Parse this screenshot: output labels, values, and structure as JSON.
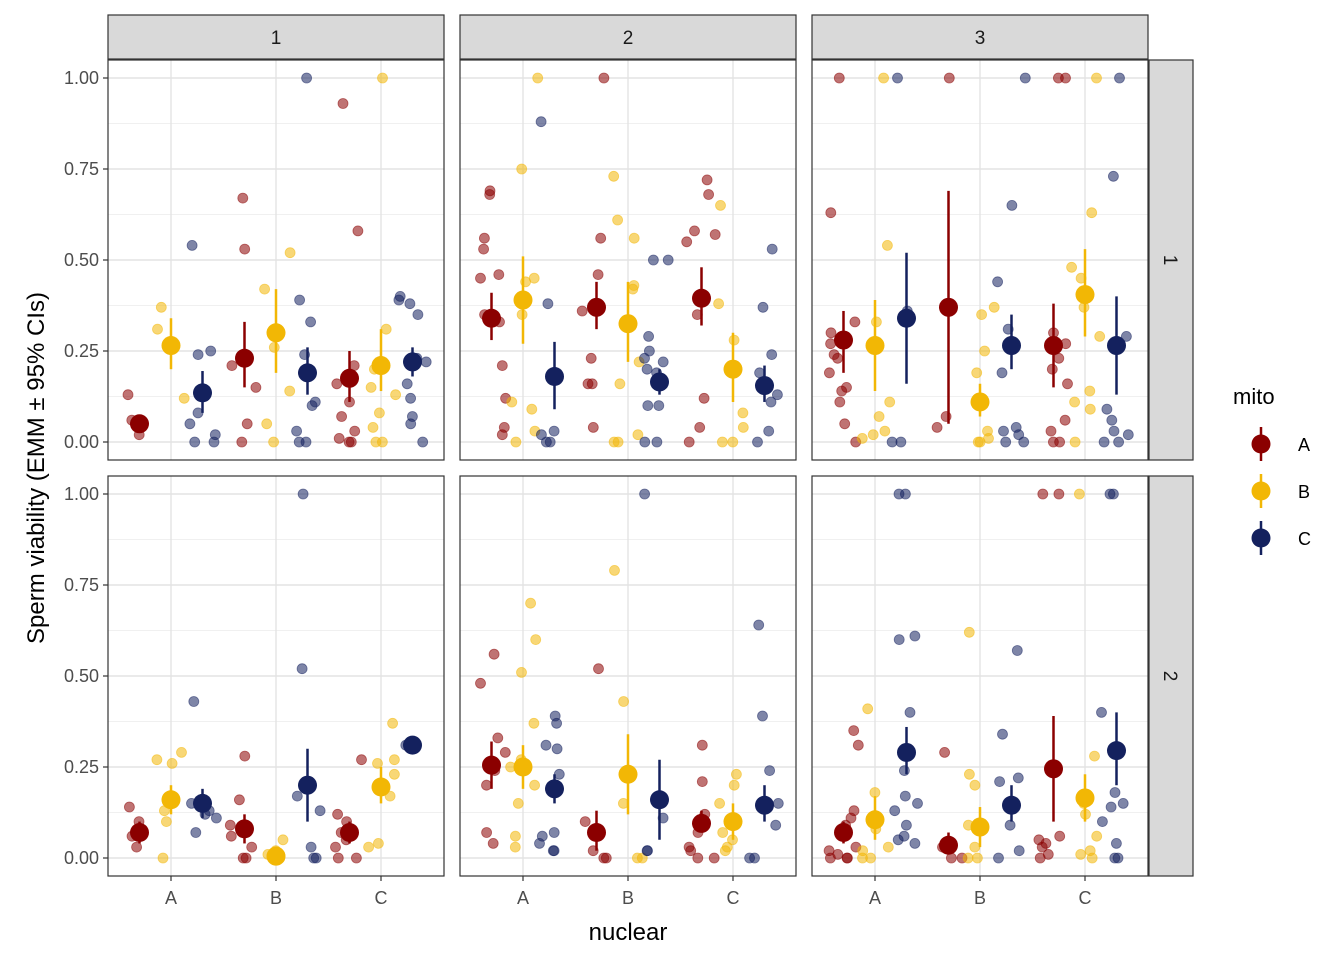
{
  "chart_data": {
    "type": "scatter",
    "title": "",
    "xlabel": "nuclear",
    "ylabel": "Sperm viability (EMM ± 95% CIs)",
    "categories": [
      "A",
      "B",
      "C"
    ],
    "ylim": [
      0,
      1
    ],
    "yticks": [
      "0.00",
      "0.25",
      "0.50",
      "0.75",
      "1.00"
    ],
    "col_strips": [
      "1",
      "2",
      "3"
    ],
    "row_strips": [
      "1",
      "2"
    ],
    "grid": true,
    "legend": {
      "title": "mito",
      "position": "right",
      "entries": [
        "A",
        "B",
        "C"
      ]
    },
    "colors": {
      "A": "#8b0000",
      "B": "#f2b705",
      "C": "#14215e"
    },
    "panels": [
      {
        "row": "1",
        "col": "1",
        "emm": {
          "A": [
            [
              0.05,
              0.04,
              0.06
            ],
            [
              0.23,
              0.15,
              0.33
            ],
            [
              0.175,
              0.11,
              0.25
            ]
          ],
          "B": [
            [
              0.265,
              0.2,
              0.34
            ],
            [
              0.3,
              0.19,
              0.42
            ],
            [
              0.21,
              0.14,
              0.31
            ]
          ],
          "C": [
            [
              0.135,
              0.08,
              0.195
            ],
            [
              0.19,
              0.13,
              0.26
            ],
            [
              0.22,
              0.18,
              0.26
            ]
          ]
        },
        "points": {
          "A": [
            [
              0.02,
              0.05,
              0.13,
              0.06
            ],
            [
              0.67,
              0.53,
              0.21,
              0.15,
              0.05,
              0.0
            ],
            [
              0.93,
              0.58,
              0.21,
              0.16,
              0.11,
              0.07,
              0.03,
              0.01,
              0.0,
              0.0
            ]
          ],
          "B": [
            [
              0.37,
              0.31,
              0.12
            ],
            [
              0.52,
              0.42,
              0.26,
              0.14,
              0.05,
              0.0
            ],
            [
              1.0,
              0.31,
              0.2,
              0.15,
              0.13,
              0.08,
              0.04,
              0.0,
              0.0
            ]
          ],
          "C": [
            [
              0.54,
              0.25,
              0.24,
              0.08,
              0.05,
              0.02,
              0.0,
              0.0
            ],
            [
              1.0,
              0.39,
              0.33,
              0.24,
              0.11,
              0.1,
              0.03,
              0.0,
              0.0
            ],
            [
              0.4,
              0.39,
              0.38,
              0.35,
              0.23,
              0.22,
              0.16,
              0.12,
              0.07,
              0.05,
              0.0
            ]
          ]
        }
      },
      {
        "row": "1",
        "col": "2",
        "emm": {
          "A": [
            [
              0.34,
              0.28,
              0.41
            ],
            [
              0.37,
              0.31,
              0.44
            ],
            [
              0.395,
              0.32,
              0.48
            ]
          ],
          "B": [
            [
              0.39,
              0.27,
              0.51
            ],
            [
              0.325,
              0.22,
              0.44
            ],
            [
              0.2,
              0.11,
              0.3
            ]
          ],
          "C": [
            [
              0.18,
              0.09,
              0.275
            ],
            [
              0.165,
              0.13,
              0.2
            ],
            [
              0.155,
              0.11,
              0.21
            ]
          ]
        },
        "points": {
          "A": [
            [
              0.69,
              0.68,
              0.56,
              0.53,
              0.46,
              0.45,
              0.35,
              0.33,
              0.21,
              0.12,
              0.04,
              0.02
            ],
            [
              1.0,
              0.56,
              0.46,
              0.36,
              0.23,
              0.16,
              0.16,
              0.04
            ],
            [
              0.72,
              0.68,
              0.58,
              0.57,
              0.55,
              0.35,
              0.12,
              0.04,
              0.0
            ]
          ],
          "B": [
            [
              1.0,
              0.75,
              0.45,
              0.44,
              0.35,
              0.11,
              0.09,
              0.03,
              0.0
            ],
            [
              0.73,
              0.61,
              0.56,
              0.43,
              0.42,
              0.22,
              0.16,
              0.02,
              0.0,
              0.0
            ],
            [
              0.65,
              0.38,
              0.28,
              0.08,
              0.04,
              0.0,
              0.0
            ]
          ],
          "C": [
            [
              0.88,
              0.38,
              0.03,
              0.02,
              0.0,
              0.0
            ],
            [
              0.5,
              0.5,
              0.29,
              0.25,
              0.23,
              0.22,
              0.2,
              0.19,
              0.1,
              0.1,
              0.0,
              0.0
            ],
            [
              0.53,
              0.37,
              0.24,
              0.19,
              0.13,
              0.11,
              0.03,
              0.0
            ]
          ]
        }
      },
      {
        "row": "1",
        "col": "3",
        "emm": {
          "A": [
            [
              0.28,
              0.19,
              0.36
            ],
            [
              0.37,
              0.05,
              0.69
            ],
            [
              0.265,
              0.15,
              0.38
            ]
          ],
          "B": [
            [
              0.265,
              0.14,
              0.39
            ],
            [
              0.11,
              0.07,
              0.16
            ],
            [
              0.405,
              0.29,
              0.53
            ]
          ],
          "C": [
            [
              0.34,
              0.16,
              0.52
            ],
            [
              0.265,
              0.2,
              0.35
            ],
            [
              0.265,
              0.13,
              0.4
            ]
          ]
        },
        "points": {
          "A": [
            [
              1.0,
              0.63,
              0.33,
              0.3,
              0.27,
              0.24,
              0.23,
              0.19,
              0.15,
              0.14,
              0.11,
              0.05,
              0.0
            ],
            [
              1.0,
              0.07,
              0.04
            ],
            [
              1.0,
              1.0,
              0.3,
              0.27,
              0.23,
              0.2,
              0.16,
              0.06,
              0.03,
              0.0,
              0.0
            ]
          ],
          "B": [
            [
              1.0,
              0.54,
              0.33,
              0.11,
              0.07,
              0.03,
              0.02,
              0.01
            ],
            [
              0.37,
              0.35,
              0.25,
              0.19,
              0.03,
              0.01,
              0.0,
              0.0
            ],
            [
              1.0,
              0.63,
              0.48,
              0.45,
              0.37,
              0.29,
              0.14,
              0.11,
              0.09,
              0.0
            ]
          ],
          "C": [
            [
              1.0,
              0.36,
              0.0,
              0.0
            ],
            [
              1.0,
              0.65,
              0.44,
              0.31,
              0.19,
              0.04,
              0.03,
              0.02,
              0.0,
              0.0
            ],
            [
              1.0,
              0.73,
              0.29,
              0.09,
              0.06,
              0.03,
              0.02,
              0.0,
              0.0
            ]
          ]
        }
      },
      {
        "row": "2",
        "col": "1",
        "emm": {
          "A": [
            [
              0.07,
              0.04,
              0.1
            ],
            [
              0.08,
              0.04,
              0.12
            ],
            [
              0.07,
              0.04,
              0.1
            ]
          ],
          "B": [
            [
              0.16,
              0.12,
              0.2
            ],
            [
              0.005,
              0.0,
              0.02
            ],
            [
              0.195,
              0.15,
              0.25
            ]
          ],
          "C": [
            [
              0.15,
              0.11,
              0.19
            ],
            [
              0.2,
              0.1,
              0.3
            ],
            [
              0.31,
              0.31,
              0.31
            ]
          ]
        },
        "points": {
          "A": [
            [
              0.14,
              0.1,
              0.06,
              0.03
            ],
            [
              0.28,
              0.16,
              0.09,
              0.06,
              0.03,
              0.0,
              0.0
            ],
            [
              0.27,
              0.12,
              0.1,
              0.07,
              0.05,
              0.03,
              0.0,
              0.0
            ]
          ],
          "B": [
            [
              0.29,
              0.27,
              0.26,
              0.13,
              0.1,
              0.0
            ],
            [
              0.05,
              0.02,
              0.01,
              0.0
            ],
            [
              0.37,
              0.27,
              0.26,
              0.23,
              0.17,
              0.04,
              0.03
            ]
          ],
          "C": [
            [
              0.43,
              0.15,
              0.13,
              0.12,
              0.11,
              0.07
            ],
            [
              1.0,
              0.52,
              0.17,
              0.13,
              0.03,
              0.0,
              0.0
            ],
            [
              0.31
            ]
          ]
        }
      },
      {
        "row": "2",
        "col": "2",
        "emm": {
          "A": [
            [
              0.255,
              0.19,
              0.32
            ],
            [
              0.07,
              0.02,
              0.13
            ],
            [
              0.095,
              0.07,
              0.13
            ]
          ],
          "B": [
            [
              0.25,
              0.19,
              0.31
            ],
            [
              0.23,
              0.12,
              0.34
            ],
            [
              0.1,
              0.05,
              0.15
            ]
          ],
          "C": [
            [
              0.19,
              0.15,
              0.23
            ],
            [
              0.16,
              0.05,
              0.27
            ],
            [
              0.145,
              0.1,
              0.2
            ]
          ]
        },
        "points": {
          "A": [
            [
              0.56,
              0.48,
              0.33,
              0.29,
              0.24,
              0.2,
              0.07,
              0.04
            ],
            [
              0.52,
              0.1,
              0.02,
              0.0,
              0.0
            ],
            [
              0.31,
              0.21,
              0.12,
              0.07,
              0.03,
              0.02,
              0.0,
              0.0
            ]
          ],
          "B": [
            [
              0.7,
              0.6,
              0.51,
              0.37,
              0.27,
              0.25,
              0.2,
              0.15,
              0.06,
              0.03
            ],
            [
              0.79,
              0.43,
              0.15,
              0.0,
              0.0
            ],
            [
              0.23,
              0.2,
              0.15,
              0.11,
              0.07,
              0.05,
              0.03,
              0.02
            ]
          ],
          "C": [
            [
              0.39,
              0.37,
              0.31,
              0.3,
              0.23,
              0.07,
              0.06,
              0.04,
              0.02,
              0.02
            ],
            [
              1.0,
              0.11,
              0.02,
              0.02
            ],
            [
              0.64,
              0.39,
              0.24,
              0.15,
              0.09,
              0.0,
              0.0
            ]
          ]
        }
      },
      {
        "row": "2",
        "col": "3",
        "emm": {
          "A": [
            [
              0.07,
              0.04,
              0.1
            ],
            [
              0.035,
              0.01,
              0.07
            ],
            [
              0.245,
              0.1,
              0.39
            ]
          ],
          "B": [
            [
              0.105,
              0.05,
              0.17
            ],
            [
              0.085,
              0.03,
              0.14
            ],
            [
              0.165,
              0.1,
              0.23
            ]
          ],
          "C": [
            [
              0.29,
              0.23,
              0.36
            ],
            [
              0.145,
              0.1,
              0.2
            ],
            [
              0.295,
              0.2,
              0.4
            ]
          ]
        },
        "points": {
          "A": [
            [
              0.35,
              0.31,
              0.13,
              0.11,
              0.09,
              0.03,
              0.02,
              0.01,
              0.0,
              0.0,
              0.0
            ],
            [
              0.29,
              0.03,
              0.0,
              0.0
            ],
            [
              1.0,
              1.0,
              0.06,
              0.05,
              0.04,
              0.03,
              0.01,
              0.0
            ]
          ],
          "B": [
            [
              0.41,
              0.18,
              0.11,
              0.08,
              0.03,
              0.02,
              0.0,
              0.0
            ],
            [
              0.62,
              0.23,
              0.2,
              0.09,
              0.03,
              0.0,
              0.0
            ],
            [
              1.0,
              0.28,
              0.15,
              0.12,
              0.06,
              0.02,
              0.01,
              0.0
            ]
          ],
          "C": [
            [
              1.0,
              1.0,
              0.61,
              0.6,
              0.4,
              0.24,
              0.17,
              0.15,
              0.13,
              0.09,
              0.06,
              0.05,
              0.04
            ],
            [
              0.57,
              0.34,
              0.22,
              0.21,
              0.09,
              0.02,
              0.0
            ],
            [
              1.0,
              1.0,
              0.4,
              0.18,
              0.15,
              0.14,
              0.1,
              0.04,
              0.0,
              0.0
            ]
          ]
        }
      }
    ]
  }
}
